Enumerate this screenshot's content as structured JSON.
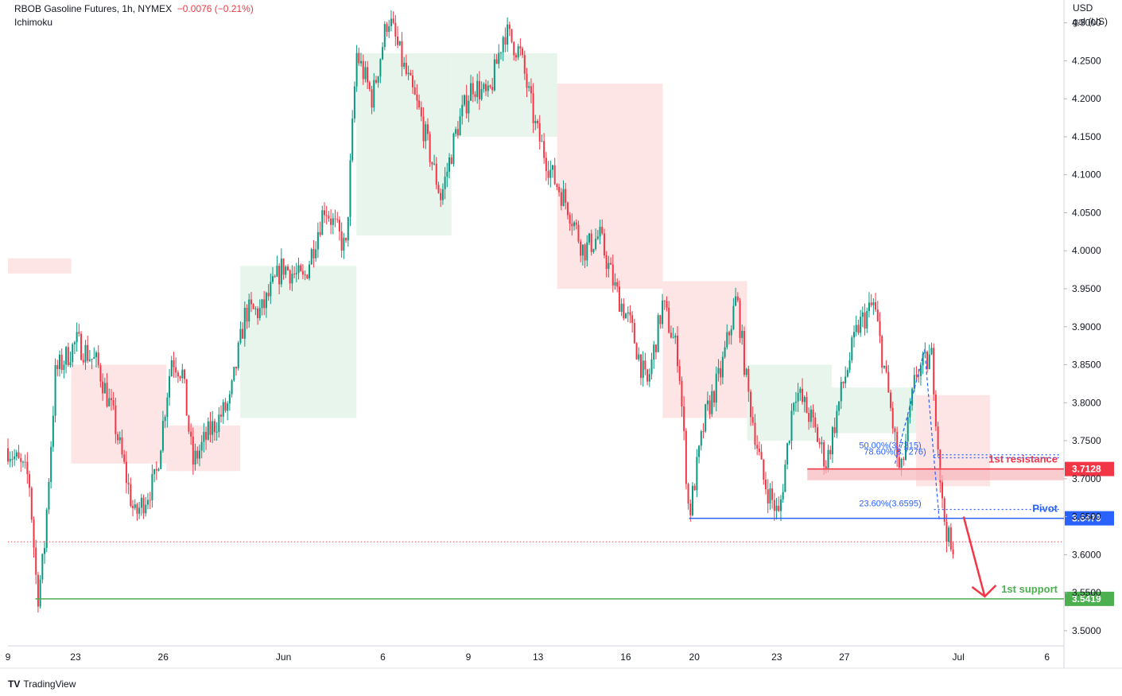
{
  "header": {
    "symbol_line": "RBOB Gasoline Futures, 1h, NYMEX",
    "change": "−0.0076 (−0.21%)",
    "indicator": "Ichimoku"
  },
  "axis": {
    "unit_top": "USD",
    "unit_bottom": "gal (US)"
  },
  "footer": {
    "logo": "TV",
    "brand": "TradingView"
  },
  "colors": {
    "up": "#089981",
    "down": "#f23645",
    "resistance": "#f23645",
    "pivot": "#2962ff",
    "support": "#4caf50",
    "cloud_bull": "#e6f4ea",
    "cloud_bear": "#fde2e2"
  },
  "chart_data": {
    "type": "candlestick",
    "title": "RBOB Gasoline Futures, 1h, NYMEX",
    "y_ticks": [
      "4.3000",
      "4.2500",
      "4.2000",
      "4.1500",
      "4.1000",
      "4.0500",
      "4.0000",
      "3.9500",
      "3.9000",
      "3.8500",
      "3.8000",
      "3.7500",
      "3.7000",
      "3.6500",
      "3.6000",
      "3.5500",
      "3.5000"
    ],
    "ylim": [
      3.48,
      4.33
    ],
    "x_ticks": [
      "9",
      "23",
      "26",
      "Jun",
      "6",
      "9",
      "13",
      "16",
      "20",
      "23",
      "27",
      "Jul",
      "6"
    ],
    "price_path": [
      {
        "x": 0.0,
        "p": 3.74
      },
      {
        "x": 0.02,
        "p": 3.7
      },
      {
        "x": 0.028,
        "p": 3.542
      },
      {
        "x": 0.034,
        "p": 3.6
      },
      {
        "x": 0.045,
        "p": 3.84
      },
      {
        "x": 0.065,
        "p": 3.88
      },
      {
        "x": 0.085,
        "p": 3.85
      },
      {
        "x": 0.1,
        "p": 3.78
      },
      {
        "x": 0.12,
        "p": 3.65
      },
      {
        "x": 0.14,
        "p": 3.7
      },
      {
        "x": 0.155,
        "p": 3.86
      },
      {
        "x": 0.165,
        "p": 3.84
      },
      {
        "x": 0.175,
        "p": 3.72
      },
      {
        "x": 0.19,
        "p": 3.76
      },
      {
        "x": 0.21,
        "p": 3.8
      },
      {
        "x": 0.225,
        "p": 3.92
      },
      {
        "x": 0.24,
        "p": 3.92
      },
      {
        "x": 0.26,
        "p": 3.98
      },
      {
        "x": 0.28,
        "p": 3.96
      },
      {
        "x": 0.3,
        "p": 4.06
      },
      {
        "x": 0.32,
        "p": 4.0
      },
      {
        "x": 0.33,
        "p": 4.26
      },
      {
        "x": 0.345,
        "p": 4.2
      },
      {
        "x": 0.36,
        "p": 4.31
      },
      {
        "x": 0.375,
        "p": 4.24
      },
      {
        "x": 0.39,
        "p": 4.18
      },
      {
        "x": 0.41,
        "p": 4.07
      },
      {
        "x": 0.425,
        "p": 4.16
      },
      {
        "x": 0.44,
        "p": 4.22
      },
      {
        "x": 0.455,
        "p": 4.2
      },
      {
        "x": 0.47,
        "p": 4.29
      },
      {
        "x": 0.485,
        "p": 4.26
      },
      {
        "x": 0.5,
        "p": 4.16
      },
      {
        "x": 0.515,
        "p": 4.1
      },
      {
        "x": 0.53,
        "p": 4.06
      },
      {
        "x": 0.545,
        "p": 4.0
      },
      {
        "x": 0.56,
        "p": 4.02
      },
      {
        "x": 0.575,
        "p": 3.95
      },
      {
        "x": 0.59,
        "p": 3.9
      },
      {
        "x": 0.605,
        "p": 3.82
      },
      {
        "x": 0.62,
        "p": 3.93
      },
      {
        "x": 0.635,
        "p": 3.86
      },
      {
        "x": 0.645,
        "p": 3.65
      },
      {
        "x": 0.66,
        "p": 3.78
      },
      {
        "x": 0.675,
        "p": 3.84
      },
      {
        "x": 0.69,
        "p": 3.94
      },
      {
        "x": 0.7,
        "p": 3.82
      },
      {
        "x": 0.715,
        "p": 3.7
      },
      {
        "x": 0.73,
        "p": 3.65
      },
      {
        "x": 0.745,
        "p": 3.82
      },
      {
        "x": 0.76,
        "p": 3.78
      },
      {
        "x": 0.775,
        "p": 3.72
      },
      {
        "x": 0.79,
        "p": 3.82
      },
      {
        "x": 0.805,
        "p": 3.9
      },
      {
        "x": 0.82,
        "p": 3.93
      },
      {
        "x": 0.835,
        "p": 3.8
      },
      {
        "x": 0.845,
        "p": 3.7
      },
      {
        "x": 0.86,
        "p": 3.84
      },
      {
        "x": 0.875,
        "p": 3.86
      },
      {
        "x": 0.885,
        "p": 3.66
      },
      {
        "x": 0.895,
        "p": 3.59
      }
    ],
    "ichimoku_cloud": [
      {
        "x0": 0.0,
        "x1": 0.06,
        "top": 3.99,
        "bottom": 3.97,
        "bias": "bear"
      },
      {
        "x0": 0.06,
        "x1": 0.15,
        "top": 3.85,
        "bottom": 3.72,
        "bias": "bear"
      },
      {
        "x0": 0.15,
        "x1": 0.22,
        "top": 3.77,
        "bottom": 3.71,
        "bias": "bear"
      },
      {
        "x0": 0.22,
        "x1": 0.33,
        "top": 3.98,
        "bottom": 3.78,
        "bias": "bull"
      },
      {
        "x0": 0.33,
        "x1": 0.42,
        "top": 4.26,
        "bottom": 4.02,
        "bias": "bull"
      },
      {
        "x0": 0.42,
        "x1": 0.52,
        "top": 4.26,
        "bottom": 4.15,
        "bias": "bull"
      },
      {
        "x0": 0.52,
        "x1": 0.62,
        "top": 4.22,
        "bottom": 3.95,
        "bias": "bear"
      },
      {
        "x0": 0.62,
        "x1": 0.7,
        "top": 3.96,
        "bottom": 3.78,
        "bias": "bear"
      },
      {
        "x0": 0.7,
        "x1": 0.78,
        "top": 3.85,
        "bottom": 3.75,
        "bias": "bull"
      },
      {
        "x0": 0.78,
        "x1": 0.86,
        "top": 3.82,
        "bottom": 3.76,
        "bias": "bull"
      },
      {
        "x0": 0.86,
        "x1": 0.93,
        "top": 3.81,
        "bottom": 3.69,
        "bias": "bear"
      }
    ],
    "levels": [
      {
        "name": "1st resistance",
        "value": 3.7128,
        "label": "3.7128",
        "x_start": 0.757,
        "color": "#f23645"
      },
      {
        "name": "Pivot",
        "value": 3.6479,
        "label": "3.6479",
        "x_start": 0.645,
        "color": "#2962ff"
      },
      {
        "name": "1st support",
        "value": 3.5419,
        "label": "3.5419",
        "x_start": 0.026,
        "color": "#4caf50"
      }
    ],
    "resistance_zone": {
      "top": 3.714,
      "bottom": 3.698,
      "x_start": 0.757
    },
    "fibonacci": [
      {
        "label": "78.60%(3.7276)",
        "value": 3.7276
      },
      {
        "label": "50.00%(3.7315)",
        "value": 3.7315
      },
      {
        "label": "23.60%(3.6595)",
        "value": 3.6595
      }
    ],
    "current_price_line": 3.617
  }
}
